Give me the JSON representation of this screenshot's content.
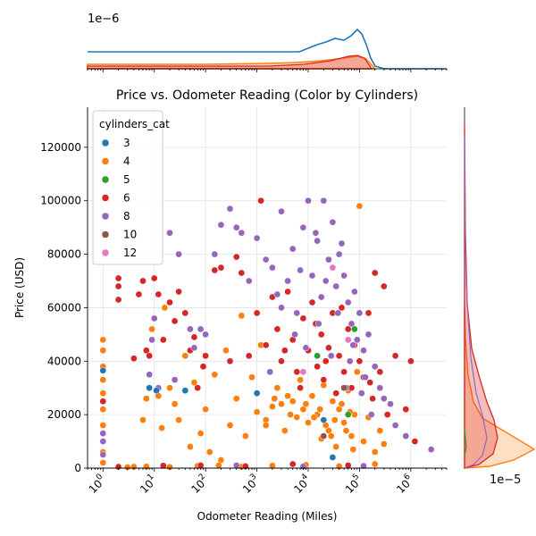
{
  "chart_data": {
    "type": "scatter",
    "title": "Price vs. Odometer Reading (Color by Cylinders)",
    "xlabel": "Odometer Reading (Miles)",
    "ylabel": "Price (USD)",
    "x_scale": "log",
    "xlim": [
      0.5,
      5000000
    ],
    "ylim": [
      0,
      135000
    ],
    "x_ticks": [
      {
        "value": 1,
        "base": "10",
        "exp": "0"
      },
      {
        "value": 10,
        "base": "10",
        "exp": "1"
      },
      {
        "value": 100,
        "base": "10",
        "exp": "2"
      },
      {
        "value": 1000,
        "base": "10",
        "exp": "3"
      },
      {
        "value": 10000,
        "base": "10",
        "exp": "4"
      },
      {
        "value": 100000,
        "base": "10",
        "exp": "5"
      },
      {
        "value": 1000000,
        "base": "10",
        "exp": "6"
      }
    ],
    "y_ticks": [
      {
        "value": 0,
        "label": "0"
      },
      {
        "value": 20000,
        "label": "20000"
      },
      {
        "value": 40000,
        "label": "40000"
      },
      {
        "value": 60000,
        "label": "60000"
      },
      {
        "value": 80000,
        "label": "80000"
      },
      {
        "value": 100000,
        "label": "100000"
      },
      {
        "value": 120000,
        "label": "120000"
      }
    ],
    "grid": true,
    "legend": {
      "title": "cylinders_cat",
      "position": "top-left",
      "entries": [
        {
          "label": "3",
          "color": "#1f77b4"
        },
        {
          "label": "4",
          "color": "#ff7f0e"
        },
        {
          "label": "5",
          "color": "#2ca02c"
        },
        {
          "label": "6",
          "color": "#d62728"
        },
        {
          "label": "8",
          "color": "#9467bd"
        },
        {
          "label": "10",
          "color": "#8c564b"
        },
        {
          "label": "12",
          "color": "#e377c2"
        }
      ]
    },
    "series": [
      {
        "name": "4",
        "color": "#ff7f0e",
        "points": [
          [
            1,
            48000
          ],
          [
            1,
            44000
          ],
          [
            1,
            38000
          ],
          [
            1,
            33000
          ],
          [
            1,
            28000
          ],
          [
            1,
            22000
          ],
          [
            1,
            16000
          ],
          [
            1,
            10000
          ],
          [
            1,
            6000
          ],
          [
            1,
            2000
          ],
          [
            4,
            500
          ],
          [
            6,
            18000
          ],
          [
            7,
            26000
          ],
          [
            8,
            30000
          ],
          [
            9,
            52000
          ],
          [
            12,
            27000
          ],
          [
            14,
            15000
          ],
          [
            16,
            60000
          ],
          [
            20,
            30000
          ],
          [
            25,
            24000
          ],
          [
            30,
            18000
          ],
          [
            40,
            42000
          ],
          [
            50,
            8000
          ],
          [
            60,
            32000
          ],
          [
            80,
            13000
          ],
          [
            100,
            22000
          ],
          [
            120,
            6000
          ],
          [
            150,
            35000
          ],
          [
            200,
            3000
          ],
          [
            250,
            44000
          ],
          [
            300,
            16000
          ],
          [
            400,
            26000
          ],
          [
            500,
            57000
          ],
          [
            600,
            12000
          ],
          [
            800,
            34000
          ],
          [
            1000,
            21000
          ],
          [
            1200,
            46000
          ],
          [
            1500,
            18000
          ],
          [
            2000,
            23000
          ],
          [
            2500,
            30000
          ],
          [
            3000,
            24000
          ],
          [
            3500,
            14000
          ],
          [
            4000,
            27000
          ],
          [
            5000,
            25000
          ],
          [
            6000,
            19000
          ],
          [
            7000,
            33000
          ],
          [
            8000,
            22000
          ],
          [
            10000,
            17000
          ],
          [
            12000,
            27000
          ],
          [
            15000,
            20000
          ],
          [
            18000,
            11000
          ],
          [
            20000,
            31000
          ],
          [
            25000,
            14000
          ],
          [
            30000,
            25000
          ],
          [
            35000,
            8000
          ],
          [
            40000,
            22000
          ],
          [
            50000,
            17000
          ],
          [
            60000,
            29000
          ],
          [
            70000,
            12000
          ],
          [
            80000,
            20000
          ],
          [
            90000,
            36000
          ],
          [
            100000,
            98000
          ],
          [
            120000,
            10000
          ],
          [
            150000,
            19000
          ],
          [
            200000,
            6000
          ],
          [
            250000,
            14000
          ],
          [
            300000,
            9000
          ],
          [
            1500,
            16000
          ],
          [
            2200,
            26000
          ],
          [
            4500,
            20000
          ],
          [
            9000,
            24000
          ],
          [
            13000,
            19000
          ],
          [
            17000,
            22000
          ],
          [
            22000,
            16000
          ],
          [
            28000,
            12000
          ],
          [
            33000,
            18000
          ],
          [
            45000,
            24000
          ],
          [
            55000,
            14000
          ],
          [
            65000,
            21000
          ],
          [
            75000,
            7000
          ],
          [
            3,
            300
          ],
          [
            7,
            600
          ],
          [
            20,
            400
          ],
          [
            70,
            800
          ],
          [
            180,
            1000
          ],
          [
            500,
            500
          ],
          [
            2000,
            900
          ],
          [
            9000,
            1200
          ],
          [
            40000,
            700
          ],
          [
            200000,
            1500
          ]
        ]
      },
      {
        "name": "6",
        "color": "#d62728",
        "points": [
          [
            1,
            25000
          ],
          [
            2,
            71000
          ],
          [
            2,
            68000
          ],
          [
            2,
            63000
          ],
          [
            4,
            41000
          ],
          [
            5,
            65000
          ],
          [
            6,
            70000
          ],
          [
            7,
            44000
          ],
          [
            8,
            42000
          ],
          [
            10,
            71000
          ],
          [
            12,
            65000
          ],
          [
            15,
            48000
          ],
          [
            20,
            62000
          ],
          [
            25,
            55000
          ],
          [
            30,
            66000
          ],
          [
            40,
            58000
          ],
          [
            50,
            44000
          ],
          [
            60,
            49000
          ],
          [
            70,
            30000
          ],
          [
            90,
            38000
          ],
          [
            100,
            42000
          ],
          [
            150,
            74000
          ],
          [
            200,
            75000
          ],
          [
            300,
            40000
          ],
          [
            400,
            79000
          ],
          [
            500,
            73000
          ],
          [
            700,
            42000
          ],
          [
            1000,
            58000
          ],
          [
            1200,
            100000
          ],
          [
            1500,
            46000
          ],
          [
            2000,
            64000
          ],
          [
            2500,
            52000
          ],
          [
            3000,
            40000
          ],
          [
            4000,
            66000
          ],
          [
            5000,
            48000
          ],
          [
            6000,
            36000
          ],
          [
            8000,
            56000
          ],
          [
            10000,
            44000
          ],
          [
            12000,
            62000
          ],
          [
            15000,
            38000
          ],
          [
            18000,
            50000
          ],
          [
            20000,
            33000
          ],
          [
            25000,
            45000
          ],
          [
            30000,
            58000
          ],
          [
            35000,
            28000
          ],
          [
            40000,
            42000
          ],
          [
            50000,
            36000
          ],
          [
            60000,
            52000
          ],
          [
            70000,
            30000
          ],
          [
            80000,
            46000
          ],
          [
            100000,
            40000
          ],
          [
            120000,
            34000
          ],
          [
            150000,
            58000
          ],
          [
            180000,
            26000
          ],
          [
            200000,
            73000
          ],
          [
            250000,
            36000
          ],
          [
            300000,
            68000
          ],
          [
            350000,
            20000
          ],
          [
            500000,
            42000
          ],
          [
            800000,
            22000
          ],
          [
            1000000,
            40000
          ],
          [
            1200000,
            10000
          ],
          [
            3500,
            44000
          ],
          [
            7000,
            30000
          ],
          [
            14000,
            54000
          ],
          [
            22000,
            40000
          ],
          [
            45000,
            60000
          ],
          [
            90000,
            48000
          ],
          [
            160000,
            32000
          ],
          [
            2,
            500
          ],
          [
            15,
            900
          ],
          [
            80,
            1000
          ],
          [
            600,
            700
          ],
          [
            5000,
            1500
          ],
          [
            60000,
            1000
          ]
        ]
      },
      {
        "name": "8",
        "color": "#9467bd",
        "points": [
          [
            1,
            13000
          ],
          [
            1,
            10000
          ],
          [
            1,
            5000
          ],
          [
            8,
            35000
          ],
          [
            9,
            48000
          ],
          [
            10,
            56000
          ],
          [
            12,
            30000
          ],
          [
            20,
            88000
          ],
          [
            25,
            33000
          ],
          [
            30,
            80000
          ],
          [
            50,
            52000
          ],
          [
            60,
            45000
          ],
          [
            80,
            52000
          ],
          [
            100,
            50000
          ],
          [
            150,
            80000
          ],
          [
            200,
            91000
          ],
          [
            300,
            97000
          ],
          [
            400,
            90000
          ],
          [
            500,
            88000
          ],
          [
            700,
            70000
          ],
          [
            1000,
            86000
          ],
          [
            1500,
            78000
          ],
          [
            2000,
            75000
          ],
          [
            2500,
            65000
          ],
          [
            3000,
            96000
          ],
          [
            4000,
            70000
          ],
          [
            5000,
            82000
          ],
          [
            6000,
            58000
          ],
          [
            8000,
            90000
          ],
          [
            10000,
            100000
          ],
          [
            12000,
            72000
          ],
          [
            15000,
            85000
          ],
          [
            18000,
            64000
          ],
          [
            20000,
            100000
          ],
          [
            25000,
            78000
          ],
          [
            30000,
            92000
          ],
          [
            35000,
            68000
          ],
          [
            40000,
            80000
          ],
          [
            50000,
            72000
          ],
          [
            60000,
            62000
          ],
          [
            70000,
            54000
          ],
          [
            80000,
            66000
          ],
          [
            90000,
            48000
          ],
          [
            100000,
            58000
          ],
          [
            120000,
            44000
          ],
          [
            150000,
            50000
          ],
          [
            200000,
            38000
          ],
          [
            250000,
            30000
          ],
          [
            300000,
            26000
          ],
          [
            400000,
            24000
          ],
          [
            500000,
            16000
          ],
          [
            800000,
            12000
          ],
          [
            2500000,
            7000
          ],
          [
            3000,
            60000
          ],
          [
            7000,
            74000
          ],
          [
            14000,
            88000
          ],
          [
            22000,
            70000
          ],
          [
            45000,
            84000
          ],
          [
            65000,
            40000
          ],
          [
            130000,
            34000
          ],
          [
            9000,
            45000
          ],
          [
            16000,
            54000
          ],
          [
            28000,
            42000
          ],
          [
            38000,
            58000
          ],
          [
            55000,
            30000
          ],
          [
            75000,
            46000
          ],
          [
            110000,
            28000
          ],
          [
            170000,
            20000
          ],
          [
            1800,
            36000
          ],
          [
            5500,
            50000
          ],
          [
            400,
            1000
          ],
          [
            8000,
            600
          ],
          [
            120000,
            800
          ]
        ]
      },
      {
        "name": "3",
        "color": "#1f77b4",
        "points": [
          [
            1,
            36500
          ],
          [
            8,
            30000
          ],
          [
            11,
            29000
          ],
          [
            40,
            29000
          ],
          [
            1000,
            28000
          ],
          [
            20000,
            18000
          ],
          [
            30000,
            4000
          ]
        ]
      },
      {
        "name": "5",
        "color": "#2ca02c",
        "points": [
          [
            80000,
            52000
          ],
          [
            60000,
            20000
          ],
          [
            15000,
            42000
          ]
        ]
      },
      {
        "name": "10",
        "color": "#8c564b",
        "points": [
          [
            20000,
            12000
          ],
          [
            50000,
            30000
          ]
        ]
      },
      {
        "name": "12",
        "color": "#e377c2",
        "points": [
          [
            30000,
            75000
          ],
          [
            60000,
            48000
          ],
          [
            8000,
            36000
          ]
        ]
      }
    ],
    "top_density_axis_label": "1e−6",
    "right_density_axis_label": "1e−5"
  }
}
